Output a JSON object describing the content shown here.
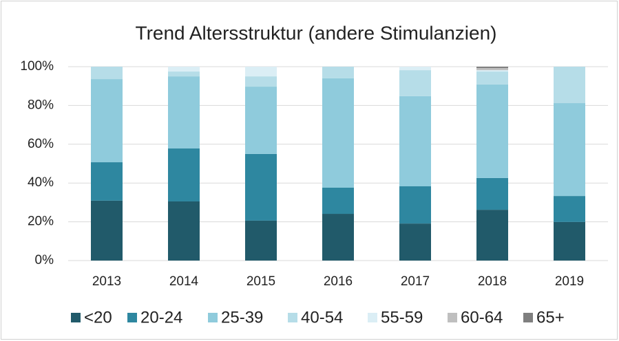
{
  "chart_data": {
    "type": "stacked_bar",
    "title": "Trend Altersstruktur (andere Stimulanzien)",
    "categories": [
      "2013",
      "2014",
      "2015",
      "2016",
      "2017",
      "2018",
      "2019"
    ],
    "series": [
      {
        "name": "<20",
        "color": "#215a6a",
        "values": [
          30.9,
          30.5,
          20.6,
          24.1,
          19.1,
          26.2,
          19.9
        ]
      },
      {
        "name": "20-24",
        "color": "#2e87a0",
        "values": [
          19.8,
          27.3,
          34.4,
          13.5,
          19.2,
          16.4,
          13.4
        ]
      },
      {
        "name": "25-39",
        "color": "#8fcbdc",
        "values": [
          42.9,
          37.2,
          34.7,
          56.4,
          46.5,
          48.2,
          47.9
        ]
      },
      {
        "name": "40-54",
        "color": "#b6dde8",
        "values": [
          6.4,
          2.5,
          5.3,
          6.0,
          13.4,
          6.7,
          18.8
        ]
      },
      {
        "name": "55-59",
        "color": "#dbeef5",
        "values": [
          0,
          2.5,
          5.0,
          0,
          1.8,
          0.7,
          0
        ]
      },
      {
        "name": "60-64",
        "color": "#bfbfbf",
        "values": [
          0,
          0,
          0,
          0,
          0,
          1.1,
          0
        ]
      },
      {
        "name": "65+",
        "color": "#7f7f7f",
        "values": [
          0,
          0,
          0,
          0,
          0,
          0.7,
          0
        ]
      }
    ],
    "ylim": [
      0,
      100
    ],
    "yticks": [
      {
        "value": 0,
        "label": "0%"
      },
      {
        "value": 20,
        "label": "20%"
      },
      {
        "value": 40,
        "label": "40%"
      },
      {
        "value": 60,
        "label": "60%"
      },
      {
        "value": 80,
        "label": "80%"
      },
      {
        "value": 100,
        "label": "100%"
      }
    ],
    "grid": true,
    "legend": "bottom"
  }
}
